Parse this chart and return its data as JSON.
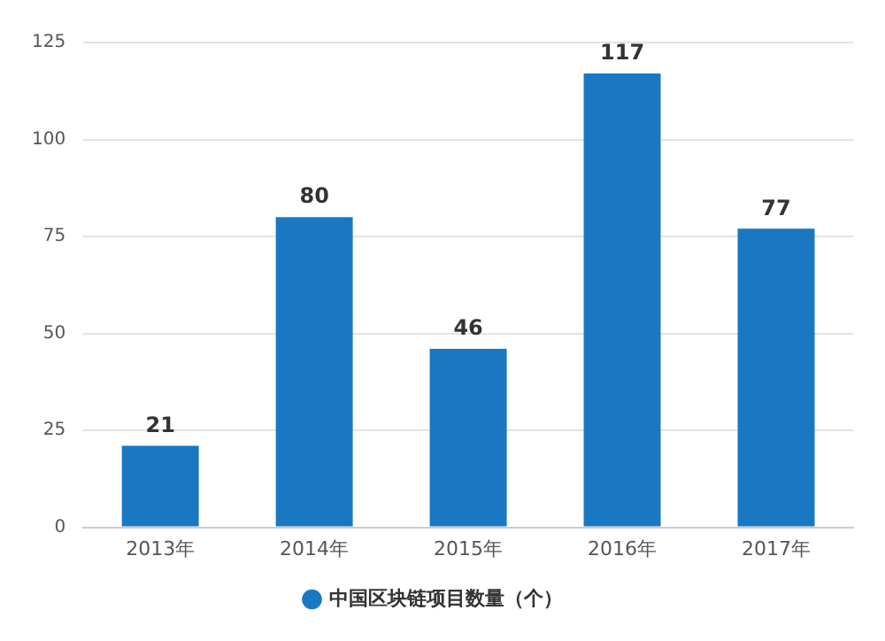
{
  "chart_data": {
    "type": "bar",
    "categories": [
      "2013年",
      "2014年",
      "2015年",
      "2016年",
      "2017年"
    ],
    "series": [
      {
        "name": "中国区块链项目数量（个）",
        "color": "#1a78c2",
        "values": [
          21,
          80,
          46,
          117,
          77
        ]
      }
    ],
    "ylim": [
      0,
      125
    ],
    "yticks": [
      0,
      25,
      50,
      75,
      100,
      125
    ],
    "grid": "y",
    "legend": "bottom",
    "data_labels": true
  }
}
